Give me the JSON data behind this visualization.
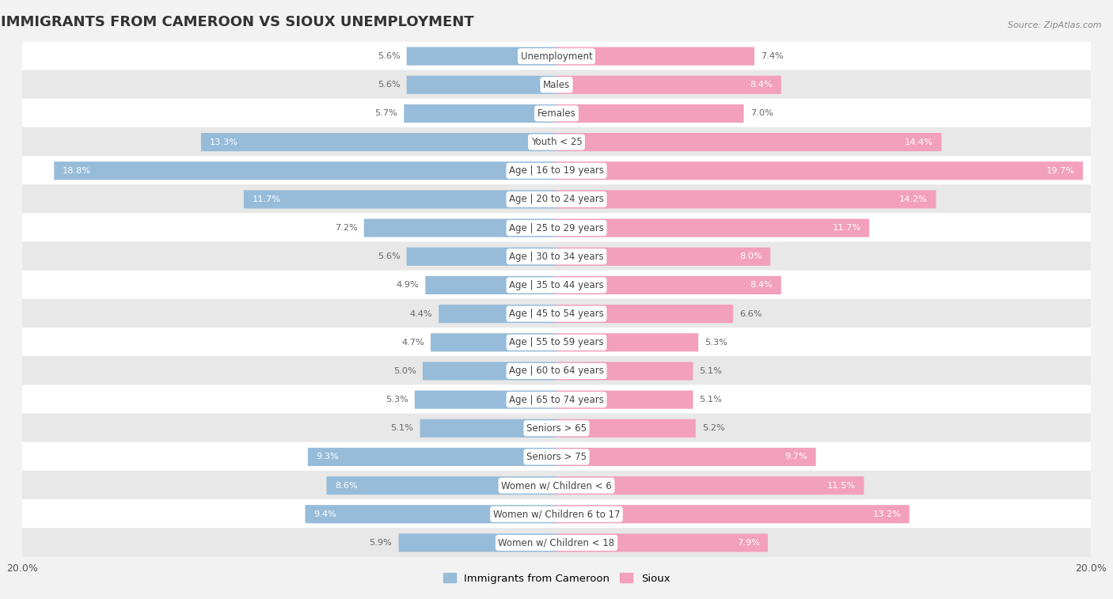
{
  "title": "IMMIGRANTS FROM CAMEROON VS SIOUX UNEMPLOYMENT",
  "source": "Source: ZipAtlas.com",
  "categories": [
    "Unemployment",
    "Males",
    "Females",
    "Youth < 25",
    "Age | 16 to 19 years",
    "Age | 20 to 24 years",
    "Age | 25 to 29 years",
    "Age | 30 to 34 years",
    "Age | 35 to 44 years",
    "Age | 45 to 54 years",
    "Age | 55 to 59 years",
    "Age | 60 to 64 years",
    "Age | 65 to 74 years",
    "Seniors > 65",
    "Seniors > 75",
    "Women w/ Children < 6",
    "Women w/ Children 6 to 17",
    "Women w/ Children < 18"
  ],
  "cameroon_values": [
    5.6,
    5.6,
    5.7,
    13.3,
    18.8,
    11.7,
    7.2,
    5.6,
    4.9,
    4.4,
    4.7,
    5.0,
    5.3,
    5.1,
    9.3,
    8.6,
    9.4,
    5.9
  ],
  "sioux_values": [
    7.4,
    8.4,
    7.0,
    14.4,
    19.7,
    14.2,
    11.7,
    8.0,
    8.4,
    6.6,
    5.3,
    5.1,
    5.1,
    5.2,
    9.7,
    11.5,
    13.2,
    7.9
  ],
  "cameroon_color": "#97bcd9",
  "sioux_color": "#f2a0bc",
  "cameroon_label": "Immigrants from Cameroon",
  "sioux_label": "Sioux",
  "axis_limit": 20.0,
  "background_color": "#f2f2f2",
  "row_bg_white": "#ffffff",
  "row_bg_gray": "#e8e8e8",
  "bar_height": 0.62,
  "title_fontsize": 13,
  "label_fontsize": 8.5,
  "value_fontsize": 8.2,
  "inside_label_threshold": 7.5
}
